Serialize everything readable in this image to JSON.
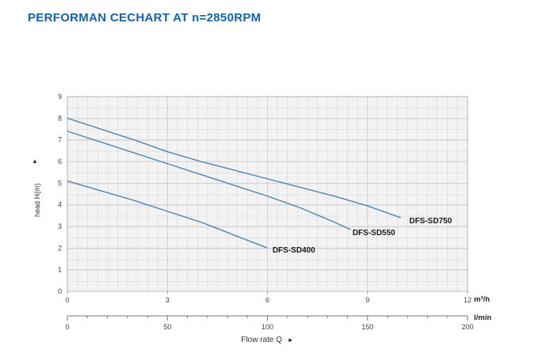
{
  "chart_data": {
    "type": "line",
    "title": "PERFORMAN CECHART AT n=2850RPM",
    "xlabel": "Flow rate Q",
    "ylabel": "head H(m)",
    "line_color": "#4b86b4",
    "grid": true,
    "x_axis_primary": {
      "unit": "m³/h",
      "range": [
        0,
        12
      ],
      "ticks": [
        0,
        3,
        6,
        9,
        12
      ]
    },
    "x_axis_secondary": {
      "unit": "l/min",
      "range": [
        0,
        200
      ],
      "ticks": [
        0,
        50,
        100,
        150,
        200
      ],
      "minor_step": 10
    },
    "y_axis": {
      "range": [
        0,
        9
      ],
      "ticks": [
        0,
        1,
        2,
        3,
        4,
        5,
        6,
        7,
        8,
        9
      ]
    },
    "series": [
      {
        "name": "DFS-SD750",
        "points": [
          [
            0,
            8.0
          ],
          [
            1,
            7.5
          ],
          [
            2,
            7.0
          ],
          [
            3,
            6.45
          ],
          [
            4,
            6.0
          ],
          [
            5,
            5.6
          ],
          [
            6,
            5.2
          ],
          [
            7,
            4.8
          ],
          [
            8,
            4.4
          ],
          [
            9,
            3.95
          ],
          [
            10,
            3.4
          ]
        ],
        "label_at": [
          10.25,
          3.15
        ]
      },
      {
        "name": "DFS-SD550",
        "points": [
          [
            0,
            7.4
          ],
          [
            1,
            6.9
          ],
          [
            2,
            6.4
          ],
          [
            3,
            5.9
          ],
          [
            4,
            5.4
          ],
          [
            5,
            4.9
          ],
          [
            6,
            4.4
          ],
          [
            7,
            3.85
          ],
          [
            8,
            3.2
          ],
          [
            8.5,
            2.85
          ]
        ],
        "label_at": [
          8.55,
          2.6
        ]
      },
      {
        "name": "DFS-SD400",
        "points": [
          [
            0,
            5.1
          ],
          [
            1,
            4.65
          ],
          [
            2,
            4.2
          ],
          [
            3,
            3.7
          ],
          [
            4,
            3.2
          ],
          [
            5,
            2.6
          ],
          [
            6,
            2.0
          ]
        ],
        "label_at": [
          6.15,
          1.8
        ]
      }
    ]
  },
  "icons": {
    "up_arrow": "▲",
    "right_arrow": "►"
  }
}
